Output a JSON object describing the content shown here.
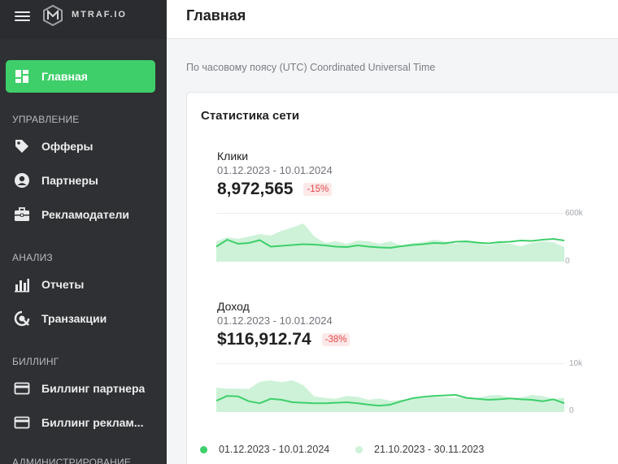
{
  "brand": {
    "name": "MTRAF.IO"
  },
  "header": {
    "title": "Главная"
  },
  "timezone_note": "По часовому поясу (UTC) Coordinated Universal Time",
  "sidebar": {
    "home": "Главная",
    "sections": {
      "manage": "УПРАВЛЕНИЕ",
      "analysis": "АНАЛИЗ",
      "billing": "БИЛЛИНГ",
      "admin": "АДМИНИСТРИРОВАНИЕ"
    },
    "items": {
      "offers": "Офферы",
      "partners": "Партнеры",
      "advertisers": "Рекламодатели",
      "reports": "Отчеты",
      "transactions": "Транзакции",
      "partner_billing": "Биллинг партнера",
      "advertiser_billing": "Биллинг реклам..."
    }
  },
  "stats": {
    "title": "Статистика сети",
    "clicks": {
      "label": "Клики",
      "range": "01.12.2023 - 10.01.2024",
      "value": "8,972,565",
      "delta": "-15%",
      "y_max_label": "600k",
      "y_min_label": "0"
    },
    "revenue": {
      "label": "Доход",
      "range": "01.12.2023 - 10.01.2024",
      "value": "$116,912.74",
      "delta": "-38%",
      "y_max_label": "10k",
      "y_min_label": "0"
    }
  },
  "legend": {
    "current": "01.12.2023 - 10.01.2024",
    "previous": "21.10.2023 - 30.11.2023"
  },
  "colors": {
    "accent": "#3ecf6a",
    "previous_fill": "#cdf2d8",
    "sidebar": "#2f3033",
    "delta_red": "#e04848"
  },
  "chart_data": [
    {
      "type": "line",
      "title": "Клики",
      "ylim": [
        0,
        600000
      ],
      "series": [
        {
          "name": "01.12.2023 - 10.01.2024",
          "values": [
            185000,
            270000,
            220000,
            230000,
            265000,
            185000,
            195000,
            205000,
            215000,
            210000,
            200000,
            185000,
            180000,
            200000,
            185000,
            175000,
            170000,
            190000,
            205000,
            215000,
            230000,
            225000,
            245000,
            250000,
            235000,
            225000,
            240000,
            245000,
            260000,
            255000,
            270000,
            280000,
            260000
          ]
        },
        {
          "name": "21.10.2023 - 30.11.2023",
          "values": [
            250000,
            300000,
            280000,
            310000,
            340000,
            320000,
            380000,
            420000,
            470000,
            310000,
            230000,
            250000,
            220000,
            260000,
            250000,
            220000,
            250000,
            200000,
            230000,
            240000,
            270000,
            250000,
            220000,
            250000,
            230000,
            200000,
            230000,
            220000,
            190000,
            230000,
            250000,
            240000,
            180000
          ]
        }
      ]
    },
    {
      "type": "line",
      "title": "Доход",
      "ylim": [
        0,
        10000
      ],
      "series": [
        {
          "name": "01.12.2023 - 10.01.2024",
          "values": [
            2300,
            3300,
            3200,
            2200,
            1800,
            2700,
            2500,
            2000,
            1900,
            1800,
            1800,
            1900,
            2000,
            1800,
            1500,
            1300,
            1500,
            2200,
            2800,
            3100,
            3300,
            3400,
            3500,
            2900,
            2700,
            2500,
            2600,
            2800,
            2600,
            2500,
            2200,
            2600,
            1800
          ]
        },
        {
          "name": "21.10.2023 - 30.11.2023",
          "values": [
            5000,
            4800,
            4800,
            4700,
            6200,
            6500,
            6100,
            6500,
            5500,
            3200,
            2900,
            2700,
            3300,
            3100,
            2500,
            2800,
            2300,
            2500,
            2700,
            2900,
            3100,
            3000,
            2900,
            2900,
            2900,
            3400,
            3500,
            2900,
            3000,
            3500,
            3300,
            2700,
            2900
          ]
        }
      ]
    }
  ]
}
